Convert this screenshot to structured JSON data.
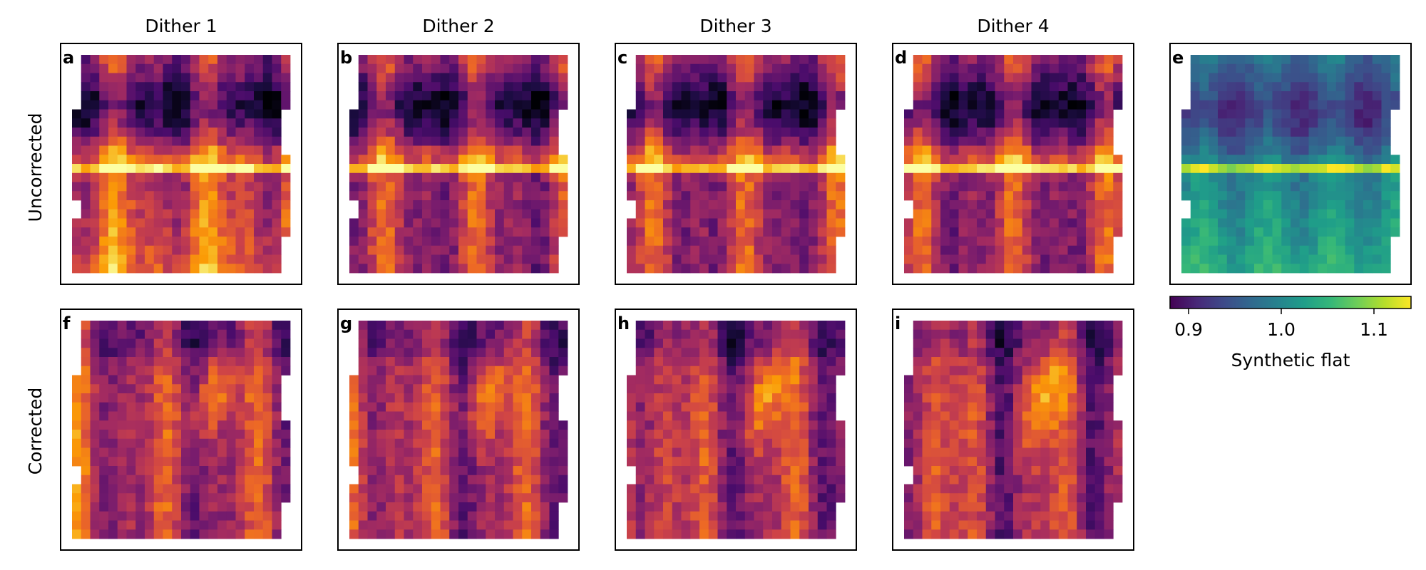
{
  "chart_data": {
    "type": "heatmap",
    "column_titles": [
      "Dither 1",
      "Dither 2",
      "Dither 3",
      "Dither 4"
    ],
    "row_labels": [
      "Uncorrected",
      "Corrected"
    ],
    "panel_labels": [
      "a",
      "b",
      "c",
      "d",
      "e",
      "f",
      "g",
      "h",
      "i"
    ],
    "grid": {
      "cols": 24,
      "rows": 24
    },
    "colormaps": {
      "data_panels": "inferno",
      "flat_panel": "viridis"
    },
    "colorbar": {
      "label": "Synthetic flat",
      "range": [
        0.88,
        1.14
      ],
      "ticks": [
        0.9,
        1.0,
        1.1
      ],
      "tick_labels": [
        "0.9",
        "1.0",
        "1.1"
      ]
    },
    "colors": {
      "inferno": [
        "#000004",
        "#1b0c41",
        "#4a0c6b",
        "#781c6d",
        "#a52c60",
        "#cf4446",
        "#ed6925",
        "#fb9b06",
        "#f7d13d",
        "#fcffa4"
      ],
      "viridis": [
        "#440154",
        "#482878",
        "#3e4a89",
        "#31688e",
        "#26828e",
        "#1f9e89",
        "#35b779",
        "#6ece58",
        "#b5de2b",
        "#fde725"
      ]
    }
  }
}
